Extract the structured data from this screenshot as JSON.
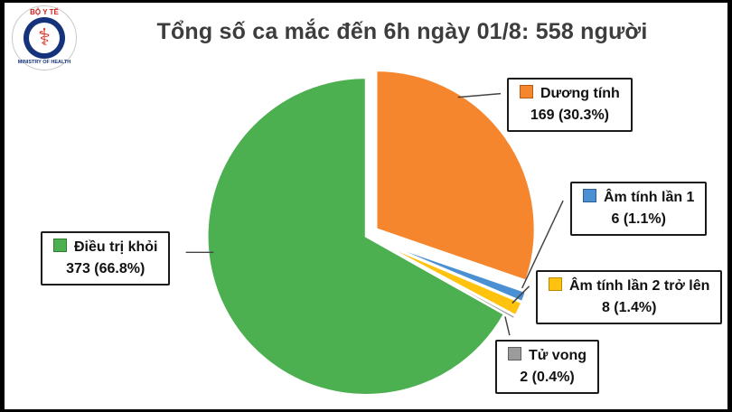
{
  "logo": {
    "top_text": "BỘ Y TẾ",
    "bottom_text": "MINISTRY OF HEALTH",
    "caduceus_glyph": "⚕"
  },
  "title": "Tổng số ca mắc đến 6h ngày 01/8: 558 người",
  "chart_data": {
    "type": "pie",
    "title": "Tổng số ca mắc đến 6h ngày 01/8: 558 người",
    "total": 558,
    "total_unit": "người",
    "start_angle_deg": -90,
    "direction": "clockwise",
    "legend_position": "callouts-around-pie",
    "slices": [
      {
        "id": "duong-tinh",
        "label": "Dương tính",
        "value": 169,
        "pct": 30.3,
        "value_text": "169 (30.3%)",
        "color": "#f6862d",
        "swatch_border": "#b35a14"
      },
      {
        "id": "am-tinh-lan-1",
        "label": "Âm tính lần 1",
        "value": 6,
        "pct": 1.1,
        "value_text": "6 (1.1%)",
        "color": "#4a90d2",
        "swatch_border": "#2a5f94"
      },
      {
        "id": "am-tinh-lan-2",
        "label": "Âm tính lần 2 trở lên",
        "value": 8,
        "pct": 1.4,
        "value_text": "8 (1.4%)",
        "color": "#ffc20e",
        "swatch_border": "#b38a00"
      },
      {
        "id": "tu-vong",
        "label": "Tử vong",
        "value": 2,
        "pct": 0.4,
        "value_text": "2 (0.4%)",
        "color": "#9b9b9b",
        "swatch_border": "#5f5f5f"
      },
      {
        "id": "dieu-tri-khoi",
        "label": "Điều trị khỏi",
        "value": 373,
        "pct": 66.8,
        "value_text": "373 (66.8%)",
        "color": "#4caf50",
        "swatch_border": "#2e7d32"
      }
    ]
  }
}
